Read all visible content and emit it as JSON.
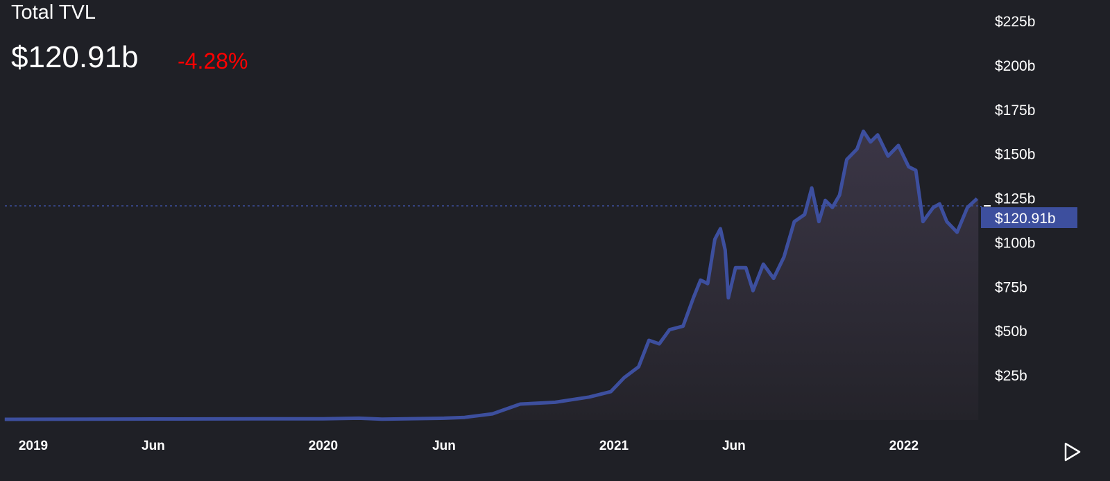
{
  "chart_data": {
    "type": "area",
    "title": "Total TVL",
    "current_value": "$120.91b",
    "change": "-4.28%",
    "current_value_number": 120.91,
    "price_label": "$120.91b",
    "ylim": [
      0,
      225
    ],
    "y_ticks": [
      25,
      50,
      75,
      100,
      125,
      150,
      175,
      200,
      225
    ],
    "y_tick_labels": [
      "$25b",
      "$50b",
      "$75b",
      "$100b",
      "$125b",
      "$150b",
      "$175b",
      "$200b",
      "$225b"
    ],
    "y_axis_position": "right",
    "x_tick_labels": [
      {
        "date": "2019-01-01",
        "label": "2019"
      },
      {
        "date": "2019-06-01",
        "label": "Jun"
      },
      {
        "date": "2020-01-01",
        "label": "2020"
      },
      {
        "date": "2020-06-01",
        "label": "Jun"
      },
      {
        "date": "2021-01-01",
        "label": "2021"
      },
      {
        "date": "2021-06-01",
        "label": "Jun"
      },
      {
        "date": "2022-01-01",
        "label": "2022"
      }
    ],
    "grid": false,
    "series": [
      {
        "unit": "billion USD",
        "points": [
          [
            "2018-11-26",
            0.4
          ],
          [
            "2019-06-01",
            0.6
          ],
          [
            "2020-01-01",
            0.7
          ],
          [
            "2020-02-15",
            1.0
          ],
          [
            "2020-03-15",
            0.5
          ],
          [
            "2020-06-01",
            1.0
          ],
          [
            "2020-06-27",
            1.5
          ],
          [
            "2020-08-01",
            3.5
          ],
          [
            "2020-09-05",
            9
          ],
          [
            "2020-10-19",
            10
          ],
          [
            "2020-12-01",
            13
          ],
          [
            "2020-12-28",
            16
          ],
          [
            "2021-01-14",
            24
          ],
          [
            "2021-02-01",
            30
          ],
          [
            "2021-02-14",
            45
          ],
          [
            "2021-02-27",
            43
          ],
          [
            "2021-03-12",
            51
          ],
          [
            "2021-03-29",
            53
          ],
          [
            "2021-04-11",
            69
          ],
          [
            "2021-04-20",
            79
          ],
          [
            "2021-04-29",
            77
          ],
          [
            "2021-05-08",
            102
          ],
          [
            "2021-05-15",
            108
          ],
          [
            "2021-05-21",
            96
          ],
          [
            "2021-05-25",
            69
          ],
          [
            "2021-06-03",
            86
          ],
          [
            "2021-06-16",
            86
          ],
          [
            "2021-06-25",
            73
          ],
          [
            "2021-07-08",
            88
          ],
          [
            "2021-07-21",
            80
          ],
          [
            "2021-08-03",
            92
          ],
          [
            "2021-08-16",
            112
          ],
          [
            "2021-08-29",
            116
          ],
          [
            "2021-09-07",
            131
          ],
          [
            "2021-09-16",
            112
          ],
          [
            "2021-09-24",
            124
          ],
          [
            "2021-10-03",
            120
          ],
          [
            "2021-10-12",
            127
          ],
          [
            "2021-10-21",
            147
          ],
          [
            "2021-11-03",
            153
          ],
          [
            "2021-11-11",
            163
          ],
          [
            "2021-11-20",
            157
          ],
          [
            "2021-11-29",
            161
          ],
          [
            "2021-12-12",
            149
          ],
          [
            "2021-12-25",
            155
          ],
          [
            "2022-01-07",
            143
          ],
          [
            "2022-01-16",
            141
          ],
          [
            "2022-01-25",
            112
          ],
          [
            "2022-02-07",
            120
          ],
          [
            "2022-02-15",
            122
          ],
          [
            "2022-02-24",
            112
          ],
          [
            "2022-03-09",
            106
          ],
          [
            "2022-03-22",
            120
          ],
          [
            "2022-04-03",
            125
          ]
        ]
      }
    ],
    "colors": {
      "background": "#1f2026",
      "line": "#3d4f9e",
      "fill_top": "#3b3646",
      "fill_bottom": "#24232a",
      "change": "#ff0000",
      "label_bg": "#3d4f9e"
    }
  },
  "controls": {
    "play_icon": "play-triangle-icon"
  }
}
